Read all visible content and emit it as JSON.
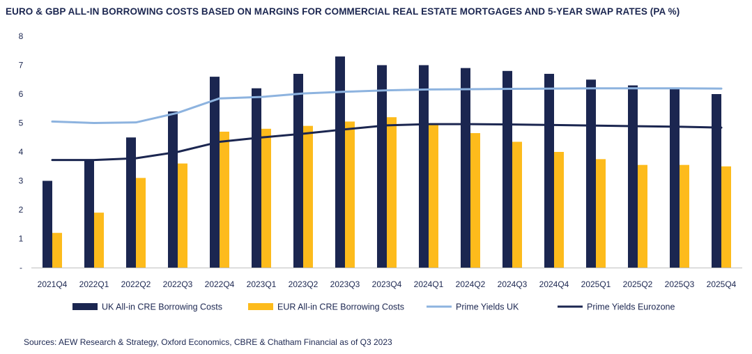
{
  "title": "EURO & GBP ALL-IN BORROWING COSTS BASED ON MARGINS FOR COMMERCIAL REAL ESTATE MORTGAGES AND 5-YEAR SWAP RATES (PA %)",
  "source": "Sources: AEW Research & Strategy, Oxford Economics, CBRE & Chatham Financial as of Q3 2023",
  "chart_data": {
    "type": "bar",
    "categories": [
      "2021Q4",
      "2022Q1",
      "2022Q2",
      "2022Q3",
      "2022Q4",
      "2023Q1",
      "2023Q2",
      "2023Q3",
      "2023Q4",
      "2024Q1",
      "2024Q2",
      "2024Q3",
      "2024Q4",
      "2025Q1",
      "2025Q2",
      "2025Q3",
      "2025Q4"
    ],
    "y_tick_labels": [
      "-",
      "1",
      "2",
      "3",
      "4",
      "5",
      "6",
      "7",
      "8"
    ],
    "ylim": [
      0,
      8
    ],
    "grid": false,
    "legend_position": "bottom",
    "series": [
      {
        "name": "UK All-in CRE Borrowing Costs",
        "kind": "bar",
        "color": "#1b2650",
        "values": [
          3.0,
          3.7,
          4.5,
          5.4,
          6.6,
          6.2,
          6.7,
          7.3,
          7.0,
          7.0,
          6.9,
          6.8,
          6.7,
          6.5,
          6.3,
          6.2,
          6.0
        ]
      },
      {
        "name": "EUR All-in CRE Borrowing Costs",
        "kind": "bar",
        "color": "#fdbb1c",
        "values": [
          1.2,
          1.9,
          3.1,
          3.6,
          4.7,
          4.8,
          4.9,
          5.05,
          5.2,
          4.95,
          4.65,
          4.35,
          4.0,
          3.75,
          3.55,
          3.55,
          3.5
        ]
      },
      {
        "name": "Prime Yields UK",
        "kind": "line",
        "color": "#8db3df",
        "values": [
          5.05,
          5.0,
          5.02,
          5.35,
          5.85,
          5.9,
          6.02,
          6.08,
          6.13,
          6.16,
          6.17,
          6.18,
          6.19,
          6.2,
          6.2,
          6.2,
          6.19
        ]
      },
      {
        "name": "Prime Yields Eurozone",
        "kind": "line",
        "color": "#1b2650",
        "values": [
          3.72,
          3.72,
          3.78,
          4.0,
          4.35,
          4.5,
          4.63,
          4.78,
          4.92,
          4.96,
          4.96,
          4.95,
          4.93,
          4.91,
          4.89,
          4.87,
          4.84
        ]
      }
    ]
  }
}
